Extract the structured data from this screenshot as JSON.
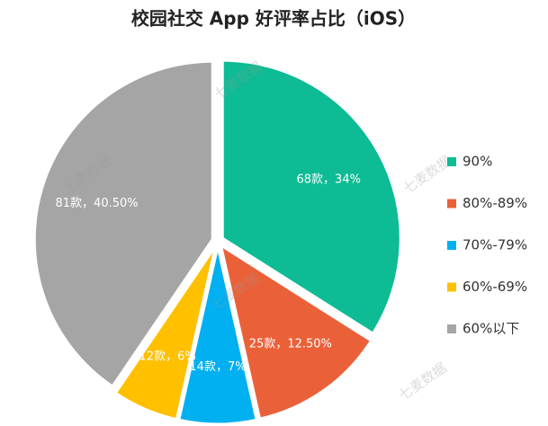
{
  "chart_data": {
    "type": "pie",
    "title": "校园社交 App 好评率占比（iOS）",
    "categories": [
      "90%",
      "80%-89%",
      "70%-79%",
      "60%-69%",
      "60%以下"
    ],
    "values": [
      34,
      12.5,
      7,
      6,
      40.5
    ],
    "counts": [
      68,
      25,
      14,
      12,
      81
    ],
    "value_labels": [
      "68款，34%",
      "25款，12.50%",
      "14款，7%",
      "12款，6%",
      "81款，40.50%"
    ],
    "colors": [
      "#0dbb94",
      "#ea6139",
      "#00b0f0",
      "#ffc000",
      "#a5a5a5"
    ],
    "legend": "right",
    "watermark": "七麦数据"
  }
}
